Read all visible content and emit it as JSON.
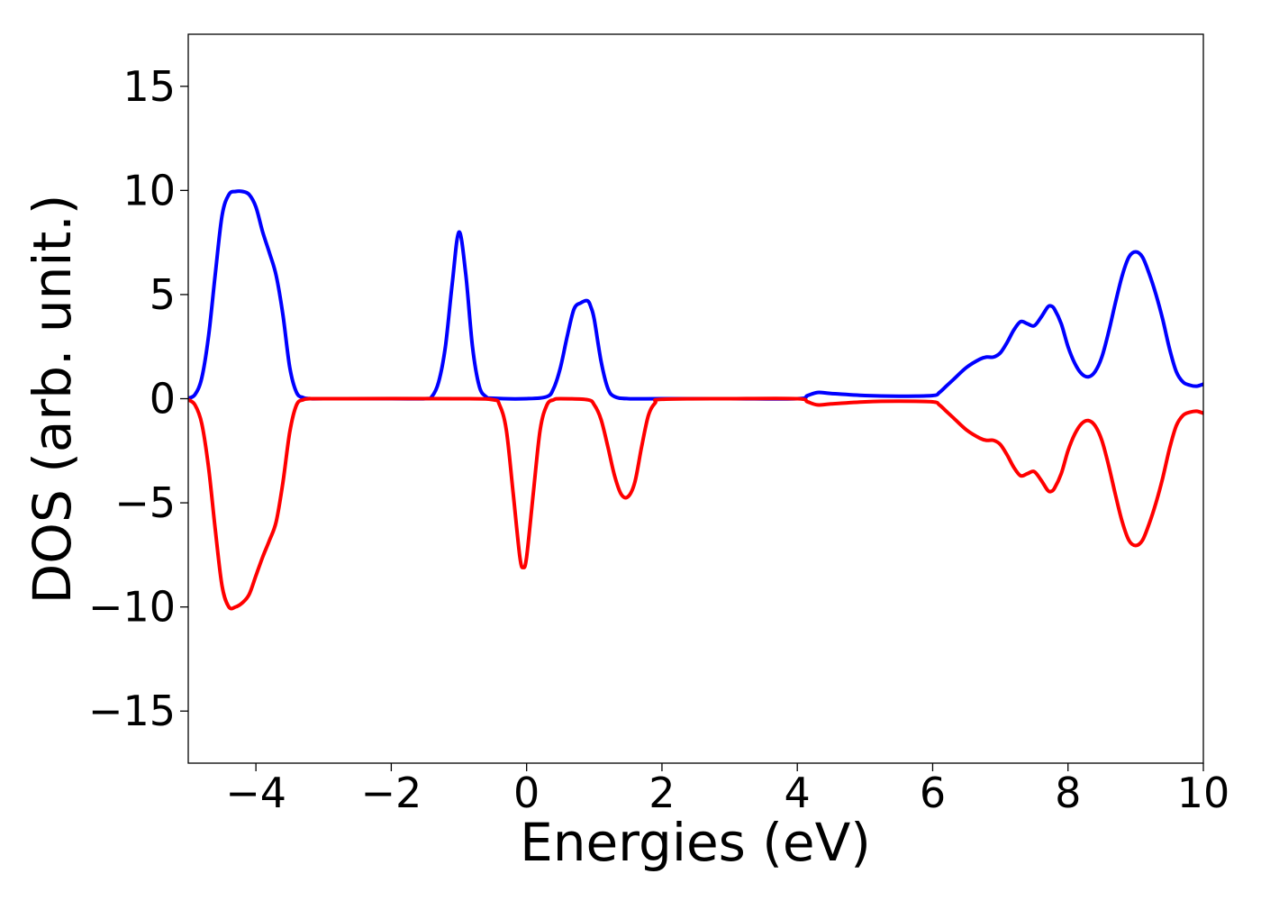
{
  "chart_data": {
    "type": "line",
    "title": "",
    "xlabel": "Energies (eV)",
    "ylabel": "DOS (arb. unit.)",
    "xlim": [
      -5,
      10
    ],
    "ylim": [
      -17.5,
      17.5
    ],
    "xticks": [
      -4,
      -2,
      0,
      2,
      4,
      6,
      8,
      10
    ],
    "xtick_labels": [
      "−4",
      "−2",
      "0",
      "2",
      "4",
      "6",
      "8",
      "10"
    ],
    "yticks": [
      15,
      10,
      5,
      0,
      -5,
      -10,
      -15
    ],
    "ytick_labels": [
      "15",
      "10",
      "5",
      "0",
      "−5",
      "−10",
      "−15"
    ],
    "grid": false,
    "legend": "none",
    "series": [
      {
        "color": "#0000ff",
        "x": [
          -5.0,
          -4.9,
          -4.8,
          -4.7,
          -4.6,
          -4.5,
          -4.4,
          -4.3,
          -4.2,
          -4.1,
          -4.0,
          -3.9,
          -3.8,
          -3.7,
          -3.6,
          -3.5,
          -3.4,
          -3.3,
          -3.2,
          -3.0,
          -2.0,
          -1.5,
          -1.4,
          -1.3,
          -1.2,
          -1.1,
          -1.0,
          -0.9,
          -0.8,
          -0.7,
          -0.6,
          -0.5,
          0.0,
          0.3,
          0.4,
          0.5,
          0.6,
          0.7,
          0.8,
          0.9,
          0.95,
          1.0,
          1.1,
          1.2,
          1.3,
          1.5,
          2.0,
          3.0,
          4.0,
          4.15,
          4.3,
          4.5,
          5.0,
          5.5,
          6.0,
          6.1,
          6.2,
          6.3,
          6.5,
          6.7,
          6.8,
          6.9,
          7.0,
          7.1,
          7.2,
          7.3,
          7.4,
          7.5,
          7.6,
          7.7,
          7.75,
          7.8,
          7.9,
          8.0,
          8.1,
          8.2,
          8.3,
          8.4,
          8.5,
          8.6,
          8.7,
          8.8,
          8.9,
          9.0,
          9.1,
          9.2,
          9.3,
          9.4,
          9.5,
          9.6,
          9.7,
          9.8,
          9.9,
          10.0
        ],
        "y": [
          0.02,
          0.2,
          1.0,
          3.0,
          6.0,
          8.8,
          9.8,
          9.95,
          9.95,
          9.8,
          9.2,
          8.0,
          7.0,
          5.9,
          4.0,
          1.5,
          0.3,
          0.05,
          0.0,
          0.0,
          0.0,
          0.0,
          0.1,
          0.8,
          2.5,
          5.5,
          8.0,
          6.0,
          2.5,
          0.6,
          0.1,
          0.02,
          0.0,
          0.1,
          0.5,
          1.5,
          3.0,
          4.3,
          4.6,
          4.7,
          4.4,
          3.8,
          1.8,
          0.5,
          0.1,
          0.0,
          0.0,
          0.0,
          0.0,
          0.15,
          0.3,
          0.25,
          0.15,
          0.12,
          0.15,
          0.3,
          0.6,
          0.9,
          1.5,
          1.9,
          2.0,
          2.0,
          2.2,
          2.7,
          3.3,
          3.7,
          3.6,
          3.5,
          3.9,
          4.4,
          4.45,
          4.3,
          3.6,
          2.5,
          1.7,
          1.2,
          1.05,
          1.3,
          2.0,
          3.2,
          4.6,
          5.9,
          6.8,
          7.05,
          6.8,
          6.0,
          5.0,
          3.8,
          2.4,
          1.3,
          0.8,
          0.65,
          0.6,
          0.7
        ]
      },
      {
        "color": "#ff0000",
        "x": [
          -5.0,
          -4.9,
          -4.8,
          -4.7,
          -4.6,
          -4.5,
          -4.4,
          -4.3,
          -4.2,
          -4.1,
          -4.0,
          -3.9,
          -3.8,
          -3.7,
          -3.6,
          -3.5,
          -3.4,
          -3.3,
          -3.2,
          -3.0,
          -1.0,
          -0.5,
          -0.4,
          -0.3,
          -0.2,
          -0.1,
          -0.05,
          0.0,
          0.1,
          0.2,
          0.3,
          0.4,
          0.5,
          0.9,
          1.0,
          1.1,
          1.2,
          1.3,
          1.4,
          1.5,
          1.6,
          1.7,
          1.8,
          1.9,
          2.0,
          3.0,
          4.0,
          4.15,
          4.3,
          4.5,
          5.0,
          5.5,
          6.0,
          6.1,
          6.2,
          6.3,
          6.5,
          6.7,
          6.8,
          6.9,
          7.0,
          7.1,
          7.2,
          7.3,
          7.4,
          7.5,
          7.6,
          7.7,
          7.75,
          7.8,
          7.9,
          8.0,
          8.1,
          8.2,
          8.3,
          8.4,
          8.5,
          8.6,
          8.7,
          8.8,
          8.9,
          9.0,
          9.1,
          9.2,
          9.3,
          9.4,
          9.5,
          9.6,
          9.7,
          9.8,
          9.9,
          10.0
        ],
        "y": [
          -0.05,
          -0.3,
          -1.2,
          -3.3,
          -6.3,
          -9.0,
          -10.0,
          -10.0,
          -9.8,
          -9.4,
          -8.5,
          -7.6,
          -6.8,
          -5.9,
          -4.0,
          -1.6,
          -0.3,
          -0.05,
          0.0,
          0.0,
          0.0,
          -0.05,
          -0.3,
          -1.5,
          -4.5,
          -7.6,
          -8.1,
          -7.6,
          -4.5,
          -1.5,
          -0.3,
          -0.05,
          0.0,
          -0.05,
          -0.3,
          -1.0,
          -2.3,
          -3.7,
          -4.6,
          -4.7,
          -4.0,
          -2.3,
          -0.8,
          -0.2,
          -0.03,
          0.0,
          0.0,
          -0.15,
          -0.3,
          -0.25,
          -0.15,
          -0.12,
          -0.15,
          -0.3,
          -0.6,
          -0.9,
          -1.5,
          -1.9,
          -2.0,
          -2.0,
          -2.2,
          -2.7,
          -3.3,
          -3.7,
          -3.6,
          -3.5,
          -3.9,
          -4.4,
          -4.45,
          -4.3,
          -3.6,
          -2.5,
          -1.7,
          -1.2,
          -1.05,
          -1.3,
          -2.0,
          -3.2,
          -4.6,
          -5.9,
          -6.8,
          -7.05,
          -6.8,
          -6.0,
          -5.0,
          -3.8,
          -2.4,
          -1.3,
          -0.8,
          -0.65,
          -0.6,
          -0.7
        ]
      }
    ]
  }
}
